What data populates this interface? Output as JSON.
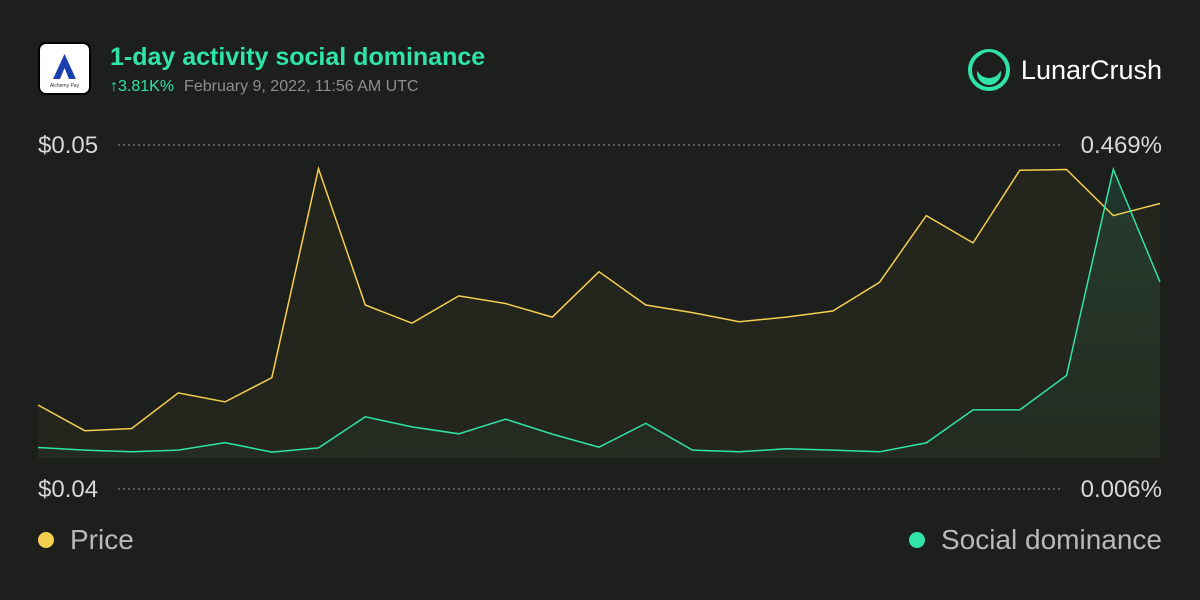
{
  "header": {
    "title": "1-day activity social dominance",
    "change": "↑3.81K%",
    "timestamp": "February 9, 2022, 11:56 AM UTC",
    "logo_text": "Alchemy Pay",
    "brand": "LunarCrush"
  },
  "colors": {
    "background": "#1c1f1c",
    "accent": "#2fe3a9",
    "price": "#f5cf4f",
    "social": "#2fe3a9"
  },
  "chart_data": {
    "type": "line",
    "title": "1-day activity social dominance",
    "x": [
      0,
      1,
      2,
      3,
      4,
      5,
      6,
      7,
      8,
      9,
      10,
      11,
      12,
      13,
      14,
      15,
      16,
      17,
      18,
      19,
      20,
      21,
      22,
      23,
      24
    ],
    "y_left": {
      "label": "Price",
      "min_label": "$0.04",
      "max_label": "$0.05",
      "ylim": [
        0.04,
        0.05
      ]
    },
    "y_right": {
      "label": "Social dominance",
      "min_label": "0.006%",
      "max_label": "0.469%",
      "ylim": [
        0.006,
        0.469
      ]
    },
    "series": [
      {
        "name": "Price",
        "axis": "left",
        "color": "#f5cf4f",
        "values": [
          0.04175,
          0.0409,
          0.04097,
          0.04215,
          0.04185,
          0.04265,
          0.04955,
          0.04505,
          0.04445,
          0.04535,
          0.0451,
          0.04465,
          0.04615,
          0.04505,
          0.0448,
          0.0445,
          0.04465,
          0.04485,
          0.0458,
          0.048,
          0.0471,
          0.0495,
          0.04952,
          0.048,
          0.0484
        ]
      },
      {
        "name": "Social dominance",
        "axis": "right",
        "color": "#2fe3a9",
        "values": [
          0.022,
          0.018,
          0.0155,
          0.018,
          0.0295,
          0.015,
          0.0215,
          0.069,
          0.0535,
          0.043,
          0.0655,
          0.0425,
          0.0225,
          0.059,
          0.018,
          0.0155,
          0.02,
          0.018,
          0.0155,
          0.029,
          0.0795,
          0.0795,
          0.132,
          0.447,
          0.275
        ]
      }
    ],
    "grid": {
      "dotted_lines": "top and bottom"
    },
    "legend": {
      "position": "bottom",
      "items": [
        "Price",
        "Social dominance"
      ]
    }
  }
}
